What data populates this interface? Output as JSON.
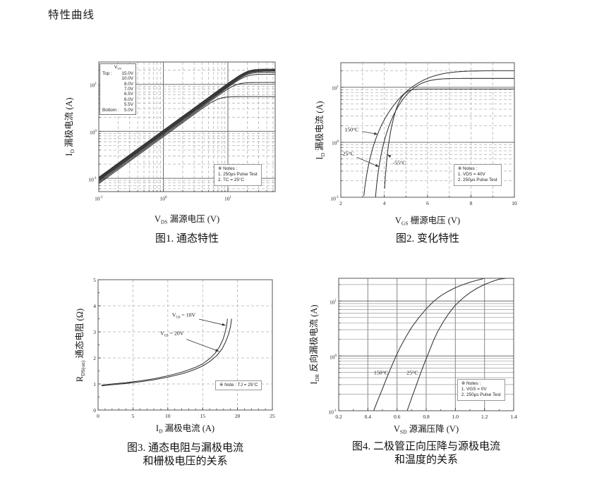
{
  "page": {
    "title": "特性曲线"
  },
  "chart_data": [
    {
      "id": "figure1",
      "type": "line",
      "caption": "图1. 通态特性",
      "xlabel": {
        "sym": "V",
        "sub": "DS",
        "rest": " 漏源电压 (V)"
      },
      "ylabel": {
        "sym": "I",
        "sub": "D",
        "rest": " 漏极电流 (A)"
      },
      "x": {
        "scale": "log",
        "min": 0.1,
        "max": 54,
        "decades": [
          -1,
          0,
          1
        ]
      },
      "y": {
        "scale": "log",
        "min": 0.052,
        "max": 30,
        "decades": [
          -1,
          0,
          1
        ]
      },
      "legend": {
        "header": {
          "sym": "V",
          "sub": "GS"
        },
        "rows": [
          [
            "Top :",
            "15.0V"
          ],
          [
            "",
            "10.0V"
          ],
          [
            "",
            "8.0V"
          ],
          [
            "",
            "7.0V"
          ],
          [
            "",
            "6.5V"
          ],
          [
            "",
            "6.0V"
          ],
          [
            "",
            "5.5V"
          ],
          [
            "Bottom :",
            "5.0V"
          ]
        ]
      },
      "notes": [
        "※ Notes :",
        "1. 250μs Pulse Test",
        "2. TC = 25°C"
      ],
      "model": "ID = (VDS/R)·(1+(VDS/(R·Isat))^6)^(-1/6)",
      "series": [
        {
          "name": "15.0V",
          "r_ohm": 0.95,
          "i_sat": 21.2
        },
        {
          "name": "10.0V",
          "r_ohm": 0.98,
          "i_sat": 20.5
        },
        {
          "name": "8.0V",
          "r_ohm": 1.02,
          "i_sat": 19.8
        },
        {
          "name": "7.0V",
          "r_ohm": 1.06,
          "i_sat": 19.2
        },
        {
          "name": "6.5V",
          "r_ohm": 1.1,
          "i_sat": 18.2
        },
        {
          "name": "6.0V",
          "r_ohm": 1.15,
          "i_sat": 16.5
        },
        {
          "name": "5.5V",
          "r_ohm": 1.22,
          "i_sat": 11.0
        },
        {
          "name": "5.0V",
          "r_ohm": 1.3,
          "i_sat": 5.5
        }
      ]
    },
    {
      "id": "figure2",
      "type": "line",
      "caption": "图2. 变化特性",
      "xlabel": {
        "sym": "V",
        "sub": "GS",
        "rest": " 栅源电压 (V)"
      },
      "ylabel": {
        "sym": "I",
        "sub": "D",
        "rest": " 漏极电流 (A)"
      },
      "x": {
        "scale": "linear",
        "min": 2,
        "max": 10
      },
      "y": {
        "scale": "log",
        "min": 0.1,
        "max": 28,
        "decades": [
          -1,
          0,
          1
        ]
      },
      "xticks": [
        [
          2,
          "2"
        ],
        [
          4,
          "4"
        ],
        [
          6,
          "6"
        ],
        [
          8,
          "8"
        ],
        [
          10,
          "10"
        ]
      ],
      "notes": [
        "※ Notes :",
        "1. VDS = 40V",
        "2. 250μs Pulse Test"
      ],
      "model": "ID = Isat·tanh(K·(VGS-Vth)²/Isat)",
      "series": [
        {
          "name": "150°C",
          "vth": 2.82,
          "k": 1.83,
          "i_sat": 20.0
        },
        {
          "name": "25°C",
          "vth": 3.42,
          "k": 3.09,
          "i_sat": 14.5
        },
        {
          "name": "-55°C",
          "vth": 3.9,
          "k": 10.0,
          "i_sat": 9.3
        }
      ],
      "annotations": [
        {
          "text": "150°C",
          "lx": 2.5,
          "ly": 1.7,
          "tipx": 3.7,
          "tipy": 1.4,
          "pad": 15
        },
        {
          "text": "25°C",
          "lx": 2.35,
          "ly": 0.62,
          "tipx": 3.76,
          "tipy": 0.36,
          "pad": 13
        },
        {
          "text": "-55°C",
          "lx": 4.7,
          "ly": 0.42,
          "tipx": 4.15,
          "tipy": 0.6,
          "pad": 15
        }
      ]
    },
    {
      "id": "figure3",
      "type": "line",
      "caption": "图3. 通态电阻与漏极电流",
      "caption2": "和栅极电压的关系",
      "xlabel": {
        "sym": "I",
        "sub": "D",
        "rest": " 漏极电流 (A)"
      },
      "ylabel": {
        "sym": "R",
        "sub": "DS(on)",
        "rest": " 通态电阻 (Ω)"
      },
      "x": {
        "scale": "linear",
        "min": 0,
        "max": 25
      },
      "y": {
        "scale": "linear",
        "min": 0,
        "max": 5
      },
      "xticks": [
        [
          0,
          "0"
        ],
        [
          5,
          "5"
        ],
        [
          10,
          "10"
        ],
        [
          15,
          "15"
        ],
        [
          20,
          "20"
        ],
        [
          25,
          "25"
        ]
      ],
      "yticks": [
        [
          0,
          "0"
        ],
        [
          1,
          "1"
        ],
        [
          2,
          "2"
        ],
        [
          3,
          "3"
        ],
        [
          4,
          "4"
        ],
        [
          5,
          "5"
        ]
      ],
      "notes": [
        "※ Note : TJ = 25°C"
      ],
      "series": [
        {
          "name": "VGS = 10V",
          "points": [
            [
              0.5,
              0.95
            ],
            [
              2,
              1.0
            ],
            [
              4,
              1.05
            ],
            [
              6,
              1.12
            ],
            [
              8,
              1.2
            ],
            [
              10,
              1.31
            ],
            [
              12,
              1.45
            ],
            [
              13,
              1.54
            ],
            [
              14,
              1.64
            ],
            [
              15,
              1.77
            ],
            [
              16,
              1.97
            ],
            [
              16.8,
              2.18
            ],
            [
              17.4,
              2.42
            ],
            [
              17.9,
              2.7
            ],
            [
              18.2,
              2.95
            ],
            [
              18.45,
              3.25
            ],
            [
              18.55,
              3.5
            ]
          ]
        },
        {
          "name": "VGS = 20V",
          "points": [
            [
              0.5,
              0.93
            ],
            [
              2,
              0.97
            ],
            [
              4,
              1.02
            ],
            [
              6,
              1.08
            ],
            [
              8,
              1.16
            ],
            [
              10,
              1.26
            ],
            [
              12,
              1.39
            ],
            [
              13,
              1.47
            ],
            [
              14,
              1.57
            ],
            [
              15,
              1.69
            ],
            [
              16,
              1.86
            ],
            [
              17,
              2.08
            ],
            [
              17.8,
              2.35
            ],
            [
              18.3,
              2.62
            ],
            [
              18.7,
              2.9
            ],
            [
              19.0,
              3.2
            ],
            [
              19.15,
              3.5
            ]
          ]
        }
      ],
      "annotations": [
        {
          "sym": "V",
          "sub": "GS",
          "rest": " = 10V",
          "lx": 12.3,
          "ly": 3.62,
          "tipx": 18.3,
          "tipy": 3.25,
          "pad": 22
        },
        {
          "sym": "V",
          "sub": "GS",
          "rest": " = 20V",
          "lx": 10.6,
          "ly": 2.92,
          "tipx": 17.35,
          "tipy": 2.25,
          "pad": 22
        }
      ]
    },
    {
      "id": "figure4",
      "type": "line",
      "caption": "图4. 二极管正向压降与源极电流",
      "caption2": "和温度的关系",
      "xlabel": {
        "sym": "V",
        "sub": "SD",
        "rest": " 源漏压降 (V)"
      },
      "ylabel": {
        "sym": "I",
        "sub": "DR",
        "rest": " 反向漏极电流 (A)"
      },
      "x": {
        "scale": "linear",
        "min": 0.2,
        "max": 1.4
      },
      "y": {
        "scale": "log",
        "min": 0.1,
        "max": 26,
        "decades": [
          -1,
          0,
          1
        ]
      },
      "xticks": [
        [
          0.2,
          "0.2"
        ],
        [
          0.4,
          "0.4"
        ],
        [
          0.6,
          "0.6"
        ],
        [
          0.8,
          "0.8"
        ],
        [
          1.0,
          "1.0"
        ],
        [
          1.2,
          "1.2"
        ],
        [
          1.4,
          "1.4"
        ]
      ],
      "notes": [
        "※ Notes :",
        "1. VGS = 0V",
        "2. 250μs Pulse Test"
      ],
      "series": [
        {
          "name": "150°C",
          "points": [
            [
              0.44,
              0.1
            ],
            [
              0.47,
              0.16
            ],
            [
              0.5,
              0.25
            ],
            [
              0.53,
              0.4
            ],
            [
              0.56,
              0.62
            ],
            [
              0.59,
              0.95
            ],
            [
              0.62,
              1.4
            ],
            [
              0.66,
              2.2
            ],
            [
              0.7,
              3.3
            ],
            [
              0.75,
              5.0
            ],
            [
              0.8,
              7.2
            ],
            [
              0.85,
              9.8
            ],
            [
              0.9,
              12.5
            ],
            [
              0.95,
              15.0
            ],
            [
              1.0,
              17.5
            ],
            [
              1.05,
              19.8
            ],
            [
              1.1,
              22.0
            ],
            [
              1.15,
              24.0
            ],
            [
              1.2,
              26.0
            ]
          ]
        },
        {
          "name": "25°C",
          "points": [
            [
              0.67,
              0.1
            ],
            [
              0.7,
              0.17
            ],
            [
              0.73,
              0.28
            ],
            [
              0.76,
              0.47
            ],
            [
              0.79,
              0.76
            ],
            [
              0.82,
              1.2
            ],
            [
              0.85,
              1.9
            ],
            [
              0.88,
              2.8
            ],
            [
              0.92,
              4.3
            ],
            [
              0.96,
              6.2
            ],
            [
              1.0,
              8.4
            ],
            [
              1.05,
              11.2
            ],
            [
              1.1,
              14.2
            ],
            [
              1.15,
              17.2
            ],
            [
              1.2,
              20.0
            ],
            [
              1.25,
              22.6
            ],
            [
              1.3,
              25.0
            ],
            [
              1.35,
              26.0
            ]
          ]
        }
      ],
      "annotations": [
        {
          "text": "150°C",
          "lx": 0.49,
          "ly": 0.49
        },
        {
          "text": "25°C",
          "lx": 0.705,
          "ly": 0.49
        }
      ]
    }
  ]
}
